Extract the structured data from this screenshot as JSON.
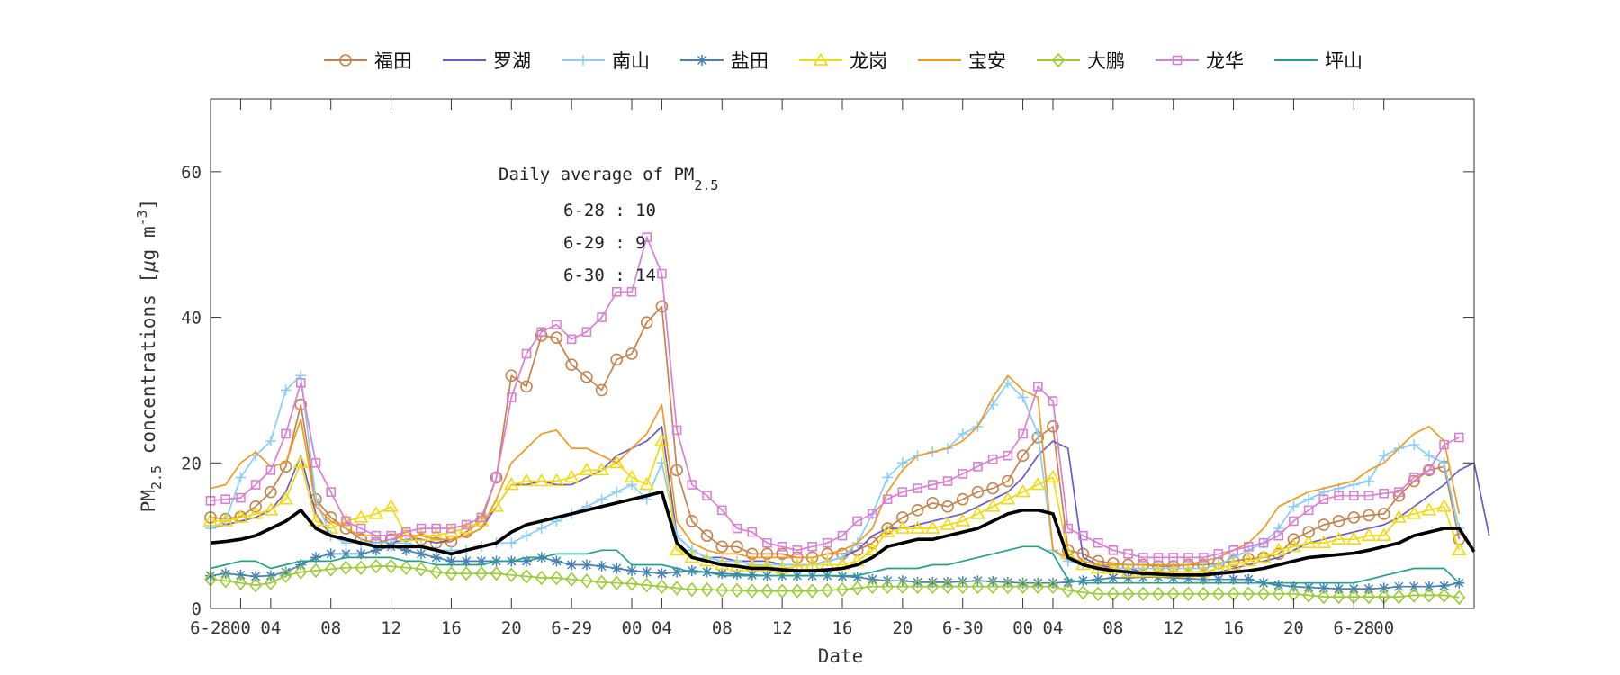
{
  "chart_data": {
    "type": "line",
    "xlabel": "Date",
    "ylabel_main": "PM",
    "ylabel_sub": "2.5",
    "ylabel_rest": " concentrations [",
    "ylabel_mu": "μ",
    "ylabel_unit": "g m",
    "ylabel_exp": "-3",
    "ylabel_close": "]",
    "ylim": [
      0,
      70
    ],
    "yticks": [
      0,
      20,
      40,
      60
    ],
    "xlim": [
      0,
      84
    ],
    "xtick_labels": [
      "6-28",
      "00",
      "04",
      "08",
      "12",
      "16",
      "20",
      "6-29",
      "00",
      "04",
      "08",
      "12",
      "16",
      "20",
      "6-30",
      "00",
      "04",
      "08",
      "12",
      "16",
      "20",
      "6-28",
      "00"
    ],
    "xtick_positions": [
      0,
      2,
      4,
      8,
      12,
      16,
      20,
      24,
      28,
      30,
      34,
      38,
      42,
      46,
      50,
      54,
      56,
      60,
      64,
      68,
      72,
      76,
      78
    ],
    "annotation": {
      "title": "Daily average of PM",
      "title_sub": "2.5",
      "lines": [
        "6-28 : 10",
        "6-29 : 9",
        "6-30 : 14"
      ]
    },
    "legend_position": "top",
    "series": [
      {
        "name": "福田",
        "color": "#c8824a",
        "marker": "circle",
        "values": [
          12.5,
          12.3,
          12.6,
          14,
          16,
          19.5,
          28,
          15,
          12.5,
          11,
          9.5,
          9,
          9.5,
          10,
          9.5,
          9,
          9.2,
          10.5,
          12,
          18,
          32,
          30.5,
          37.5,
          37.2,
          33.5,
          31.8,
          30,
          34.2,
          35,
          39.3,
          41.5,
          19,
          12,
          10,
          8.5,
          8.5,
          7.5,
          7.5,
          7.5,
          7,
          7,
          7.5,
          7.5,
          8,
          9,
          11,
          12.5,
          13.5,
          14.5,
          14,
          15,
          16,
          16.5,
          17.5,
          21,
          23.5,
          25,
          8,
          7.5,
          6.5,
          6.2,
          6,
          6,
          5.8,
          5.8,
          6,
          6,
          6.2,
          6.5,
          6.8,
          7,
          7.5,
          9.5,
          10.5,
          11.5,
          12,
          12.5,
          12.8,
          13,
          15.5,
          17.5,
          19,
          19.5,
          9.5
        ]
      },
      {
        "name": "罗湖",
        "color": "#6a5acd",
        "marker": "none",
        "values": [
          11,
          11.5,
          12,
          12.5,
          13.5,
          16,
          21,
          13,
          10,
          9.5,
          9,
          9,
          9,
          9.5,
          9.5,
          9,
          9.5,
          10,
          11,
          14,
          17,
          17,
          17.5,
          17,
          17,
          18,
          19,
          21,
          22,
          23,
          25,
          10,
          8,
          7,
          7,
          6.5,
          6.5,
          6.5,
          6,
          6,
          6,
          6.5,
          7,
          8,
          10,
          11,
          11,
          11.5,
          12,
          12.5,
          13,
          14,
          15,
          16,
          18,
          21,
          23,
          22,
          7,
          6,
          5.5,
          5.5,
          5,
          5,
          5,
          5,
          5,
          5,
          5.5,
          6,
          6.5,
          7,
          8,
          9,
          9.5,
          10,
          10.5,
          11,
          11.5,
          12.5,
          14,
          15.5,
          17,
          19,
          20,
          10
        ]
      },
      {
        "name": "南山",
        "color": "#87cefa",
        "marker": "plus",
        "values": [
          11,
          12,
          18,
          21,
          23,
          30,
          32,
          15,
          10,
          9,
          9,
          9,
          9,
          9,
          8.5,
          8,
          8,
          8,
          8.5,
          9,
          9,
          10,
          11,
          12,
          13,
          14,
          15,
          16,
          17,
          15,
          20,
          10,
          8,
          7,
          6.5,
          6.5,
          6,
          6,
          6,
          6,
          6,
          6.5,
          7,
          9,
          13,
          18,
          20,
          21,
          21.5,
          22,
          24,
          25,
          28,
          31,
          29,
          24,
          8,
          6.5,
          6,
          5.5,
          5.5,
          5.5,
          5.5,
          5.5,
          5.5,
          5.5,
          5.5,
          6,
          7,
          8,
          9,
          11,
          14,
          15,
          16,
          16.5,
          17,
          17.5,
          21,
          22,
          22.5,
          21,
          20,
          11
        ]
      },
      {
        "name": "盐田",
        "color": "#4682b4",
        "marker": "star",
        "values": [
          4.5,
          4.8,
          4.6,
          4.4,
          4.5,
          5,
          6,
          7,
          7.5,
          7.5,
          7.5,
          8,
          8.5,
          8,
          7.5,
          7,
          6.5,
          6.5,
          6.5,
          6.5,
          6.5,
          6.5,
          7,
          6.5,
          6,
          6,
          5.8,
          5.5,
          5.2,
          5,
          4.8,
          5,
          5.2,
          5,
          4.8,
          4.7,
          4.6,
          4.5,
          4.5,
          4.5,
          4.5,
          4.5,
          4.4,
          4.3,
          4,
          3.8,
          3.8,
          3.6,
          3.6,
          3.6,
          3.7,
          3.8,
          3.7,
          3.6,
          3.5,
          3.5,
          3.5,
          3.6,
          3.8,
          4,
          4.2,
          4.2,
          4.3,
          4.3,
          4.2,
          4.1,
          4,
          4,
          4,
          4,
          3.5,
          3.2,
          3,
          2.9,
          2.8,
          2.7,
          2.7,
          2.7,
          2.8,
          3,
          3,
          3,
          3.1,
          3.5
        ]
      },
      {
        "name": "龙岗",
        "color": "#f5d90a",
        "marker": "triangle",
        "values": [
          12,
          12,
          12.5,
          13,
          13.5,
          15,
          20,
          12,
          11,
          12,
          12.5,
          13,
          14,
          10,
          10,
          10,
          10.5,
          11,
          12,
          14,
          17,
          17.5,
          17.5,
          17.5,
          18,
          19,
          19,
          20,
          18,
          17,
          23,
          8,
          7,
          6.5,
          6,
          5.8,
          5.8,
          5.8,
          5.5,
          5.8,
          6,
          6,
          6,
          6.5,
          8,
          10.5,
          11,
          11,
          11,
          11.5,
          12,
          13,
          14,
          15,
          16,
          17,
          18,
          7.5,
          6,
          5.5,
          5.5,
          5,
          5,
          5,
          5,
          5,
          5,
          5.5,
          6,
          6.5,
          7,
          8,
          8.5,
          9,
          9,
          9.5,
          9.5,
          10,
          10,
          12.5,
          13,
          13.5,
          14,
          8
        ]
      },
      {
        "name": "宝安",
        "color": "#f39a1e",
        "marker": "none",
        "values": [
          16.5,
          17,
          20,
          21.5,
          19.5,
          20,
          26,
          14,
          12,
          11,
          10,
          10,
          10,
          10,
          10,
          9.5,
          9.5,
          10,
          11,
          15,
          20,
          22,
          24,
          24.5,
          22,
          22,
          21,
          20,
          22,
          24,
          28,
          12,
          9,
          8,
          7.5,
          7.5,
          7,
          7,
          7,
          7,
          7,
          7.5,
          8,
          9,
          11,
          16,
          19,
          21,
          21.5,
          22,
          23,
          25,
          29,
          32,
          30,
          29,
          8,
          7,
          6.5,
          6,
          6,
          6,
          6,
          6,
          6,
          6,
          6.5,
          7,
          8,
          9,
          11,
          14,
          15,
          16,
          16.5,
          17,
          17.5,
          19,
          20,
          22,
          24,
          25,
          23,
          13
        ]
      },
      {
        "name": "大鹏",
        "color": "#9acd32",
        "marker": "diamond",
        "values": [
          4,
          3.8,
          3.5,
          3.2,
          3.5,
          4.5,
          5,
          5.2,
          5.4,
          5.6,
          5.6,
          5.8,
          5.8,
          5.6,
          5.4,
          5,
          4.8,
          4.8,
          4.8,
          4.8,
          4.6,
          4.4,
          4.2,
          4.2,
          4,
          3.8,
          3.6,
          3.5,
          3.4,
          3.2,
          3,
          2.8,
          2.6,
          2.6,
          2.5,
          2.5,
          2.4,
          2.4,
          2.4,
          2.4,
          2.4,
          2.5,
          2.6,
          2.8,
          3,
          3,
          3,
          3,
          3,
          3,
          3,
          3,
          3,
          3,
          3,
          3,
          3,
          2.5,
          2.2,
          2,
          2,
          2,
          2,
          2,
          2,
          2,
          2,
          2,
          2,
          2,
          2,
          2,
          2,
          1.8,
          1.6,
          1.6,
          1.6,
          1.6,
          1.6,
          1.6,
          1.8,
          1.8,
          1.8,
          1.5
        ]
      },
      {
        "name": "龙华",
        "color": "#d97fd5",
        "marker": "square",
        "values": [
          14.8,
          15,
          15.2,
          17,
          19,
          24,
          31,
          20,
          16,
          12,
          11,
          10,
          10,
          10.5,
          11,
          11,
          11,
          11.5,
          12.5,
          18,
          29,
          35,
          38,
          39,
          37,
          38,
          40,
          43.5,
          43.5,
          51,
          46,
          24.5,
          17,
          15.5,
          13.5,
          11,
          10.5,
          9,
          8.5,
          8,
          8.5,
          9,
          10,
          12,
          13,
          15,
          16,
          16.5,
          17,
          17.5,
          18.5,
          19.5,
          20.5,
          21,
          24,
          30.5,
          28.5,
          11,
          10,
          9,
          8,
          7.5,
          7,
          7,
          7,
          7,
          7,
          7.5,
          8,
          8.5,
          9,
          10,
          12,
          13.5,
          15,
          15.5,
          15.5,
          15.5,
          15.8,
          16,
          18,
          19,
          22.5,
          23.5
        ]
      },
      {
        "name": "坪山",
        "color": "#20a28c",
        "marker": "none",
        "values": [
          5.5,
          6,
          6.5,
          6.5,
          5.5,
          6,
          6.5,
          6.5,
          6.5,
          7,
          7,
          7,
          7,
          6.5,
          6.5,
          6,
          6,
          6,
          6,
          6.5,
          6.5,
          7,
          7,
          7.5,
          7.5,
          7.5,
          8,
          8,
          6,
          6,
          6,
          5.5,
          5,
          5,
          4.5,
          4.5,
          4.5,
          4.5,
          4.5,
          4.5,
          4.5,
          4.5,
          4.5,
          4.5,
          5,
          5.5,
          5.5,
          5.5,
          6,
          6,
          6.5,
          7,
          7.5,
          8,
          8.5,
          8.5,
          7.5,
          4,
          3.5,
          3.5,
          3.5,
          3.5,
          3.5,
          3.5,
          3.5,
          3.5,
          3.5,
          3.5,
          3.5,
          3.5,
          3.5,
          3.5,
          3.5,
          3.5,
          3.5,
          3.5,
          3.5,
          4,
          4.5,
          5,
          5.5,
          5.5,
          5.5,
          3.5
        ]
      },
      {
        "name": "",
        "color": "#000000",
        "marker": "none",
        "legend": false,
        "values": [
          9,
          9.2,
          9.5,
          10,
          11,
          12,
          13.5,
          11,
          10,
          9.5,
          9,
          8.5,
          8.5,
          8.5,
          8.5,
          8,
          7.5,
          8,
          8.5,
          9,
          10.5,
          11.5,
          12,
          12.5,
          13,
          13.5,
          14,
          14.5,
          15,
          15.5,
          16,
          9,
          7,
          6.5,
          6,
          5.8,
          5.5,
          5.5,
          5.3,
          5.2,
          5.2,
          5.3,
          5.5,
          6,
          7,
          8.5,
          9,
          9.5,
          9.5,
          10,
          10.5,
          11,
          12,
          13,
          13.5,
          13.5,
          13,
          7,
          6,
          5.5,
          5.2,
          5,
          4.8,
          4.7,
          4.6,
          4.6,
          4.6,
          4.8,
          5,
          5.2,
          5.5,
          6,
          6.5,
          7,
          7.2,
          7.4,
          7.6,
          8,
          8.5,
          9,
          10,
          10.5,
          11,
          11,
          7.8
        ]
      }
    ]
  }
}
